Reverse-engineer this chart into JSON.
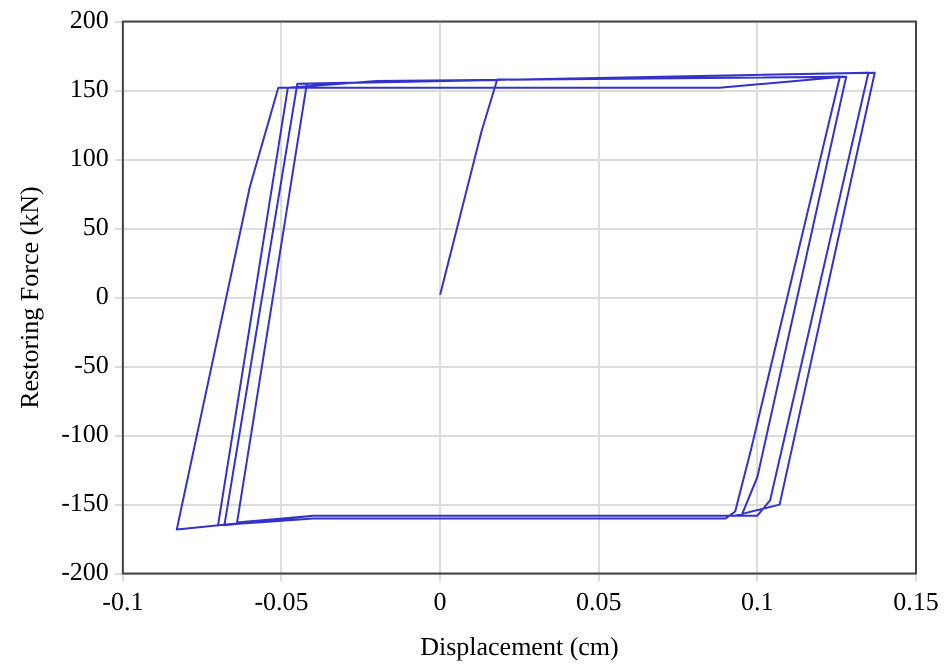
{
  "chart_data": {
    "type": "line",
    "xlabel": "Displacement (cm)",
    "ylabel": "Restoring Force (kN)",
    "xlim": [
      -0.1,
      0.15
    ],
    "xticks": [
      -0.1,
      -0.05,
      0,
      0.05,
      0.1,
      0.15
    ],
    "ylim": [
      -200,
      200
    ],
    "yticks": [
      -200,
      -150,
      -100,
      -50,
      0,
      50,
      100,
      150,
      200
    ],
    "grid": true,
    "marker": "none",
    "line_style": "solid",
    "series": [
      {
        "color": "#3333cc",
        "x": [
          0,
          0.013,
          0.018,
          0.126,
          0.098,
          0.093,
          0.09,
          -0.04,
          -0.07,
          -0.048,
          -0.02,
          0.128,
          0.1,
          0.095,
          -0.04,
          -0.068,
          -0.045,
          0.135,
          0.104,
          0.1,
          -0.04,
          -0.064,
          -0.042,
          0.137,
          0.107,
          0.093,
          -0.04,
          -0.083,
          -0.06,
          -0.051,
          0.088,
          0.127
        ],
        "values": [
          2,
          120,
          158,
          160,
          -110,
          -155,
          -160,
          -160,
          -165,
          152,
          157,
          160,
          -130,
          -158,
          -158,
          -165,
          155,
          163,
          -147,
          -158,
          -158,
          -163,
          155,
          163,
          -150,
          -158,
          -158,
          -168,
          80,
          152,
          152,
          160
        ]
      }
    ]
  }
}
